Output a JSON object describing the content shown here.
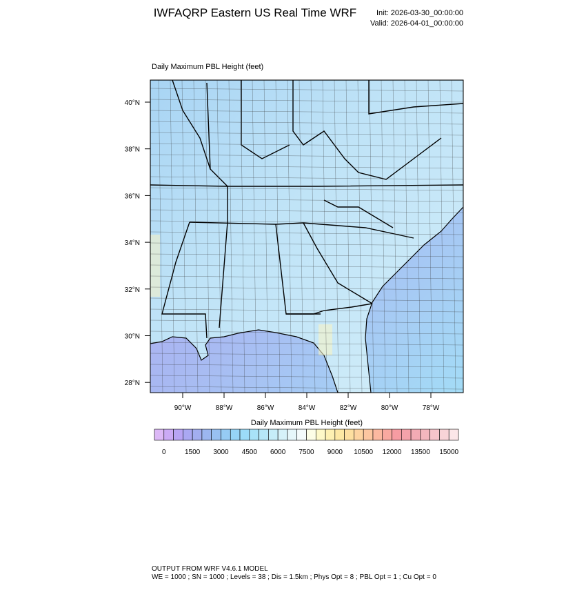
{
  "header": {
    "title": "IWFAQRP Eastern US Real Time WRF",
    "init": "Init: 2026-03-30_00:00:00",
    "valid": "Valid: 2026-04-01_00:00:00"
  },
  "map": {
    "subtitle": "Daily Maximum PBL Height   (feet)",
    "lat_labels": [
      "40°N",
      "38°N",
      "36°N",
      "34°N",
      "32°N",
      "30°N",
      "28°N"
    ],
    "lon_labels": [
      "90°W",
      "88°W",
      "86°W",
      "84°W",
      "82°W",
      "80°W",
      "78°W"
    ]
  },
  "colorbar": {
    "title": "Daily Maximum PBL Height  (feet)",
    "labels": [
      0,
      1500,
      3000,
      4500,
      6000,
      7500,
      9000,
      10500,
      12000,
      13500,
      15000
    ],
    "colors": [
      "#dcb8f6",
      "#cbaaf5",
      "#b8a4f4",
      "#aaa8f2",
      "#a2aef0",
      "#9cb7f0",
      "#98c1f2",
      "#96cbf4",
      "#96d4f6",
      "#9cdcf8",
      "#a8e2f8",
      "#b6e7f8",
      "#c6edf9",
      "#d6f2fa",
      "#e6f7fb",
      "#f4fbfc",
      "#fcfde6",
      "#fdf8c8",
      "#fdf0b2",
      "#fde8a4",
      "#fddfa0",
      "#fdd3a0",
      "#fcc6a0",
      "#fbb8a0",
      "#f9a9a0",
      "#f69ca2",
      "#f4a2aa",
      "#f3abb4",
      "#f4b6be",
      "#f6c4ca",
      "#f8d4d8",
      "#fbe6e8"
    ]
  },
  "footer": {
    "line1": "OUTPUT FROM WRF V4.6.1 MODEL",
    "line2": "WE = 1000 ; SN = 1000 ; Levels = 38 ; Dis = 1.5km ; Phys Opt = 8 ; PBL Opt = 1 ; Cu Opt = 0"
  }
}
